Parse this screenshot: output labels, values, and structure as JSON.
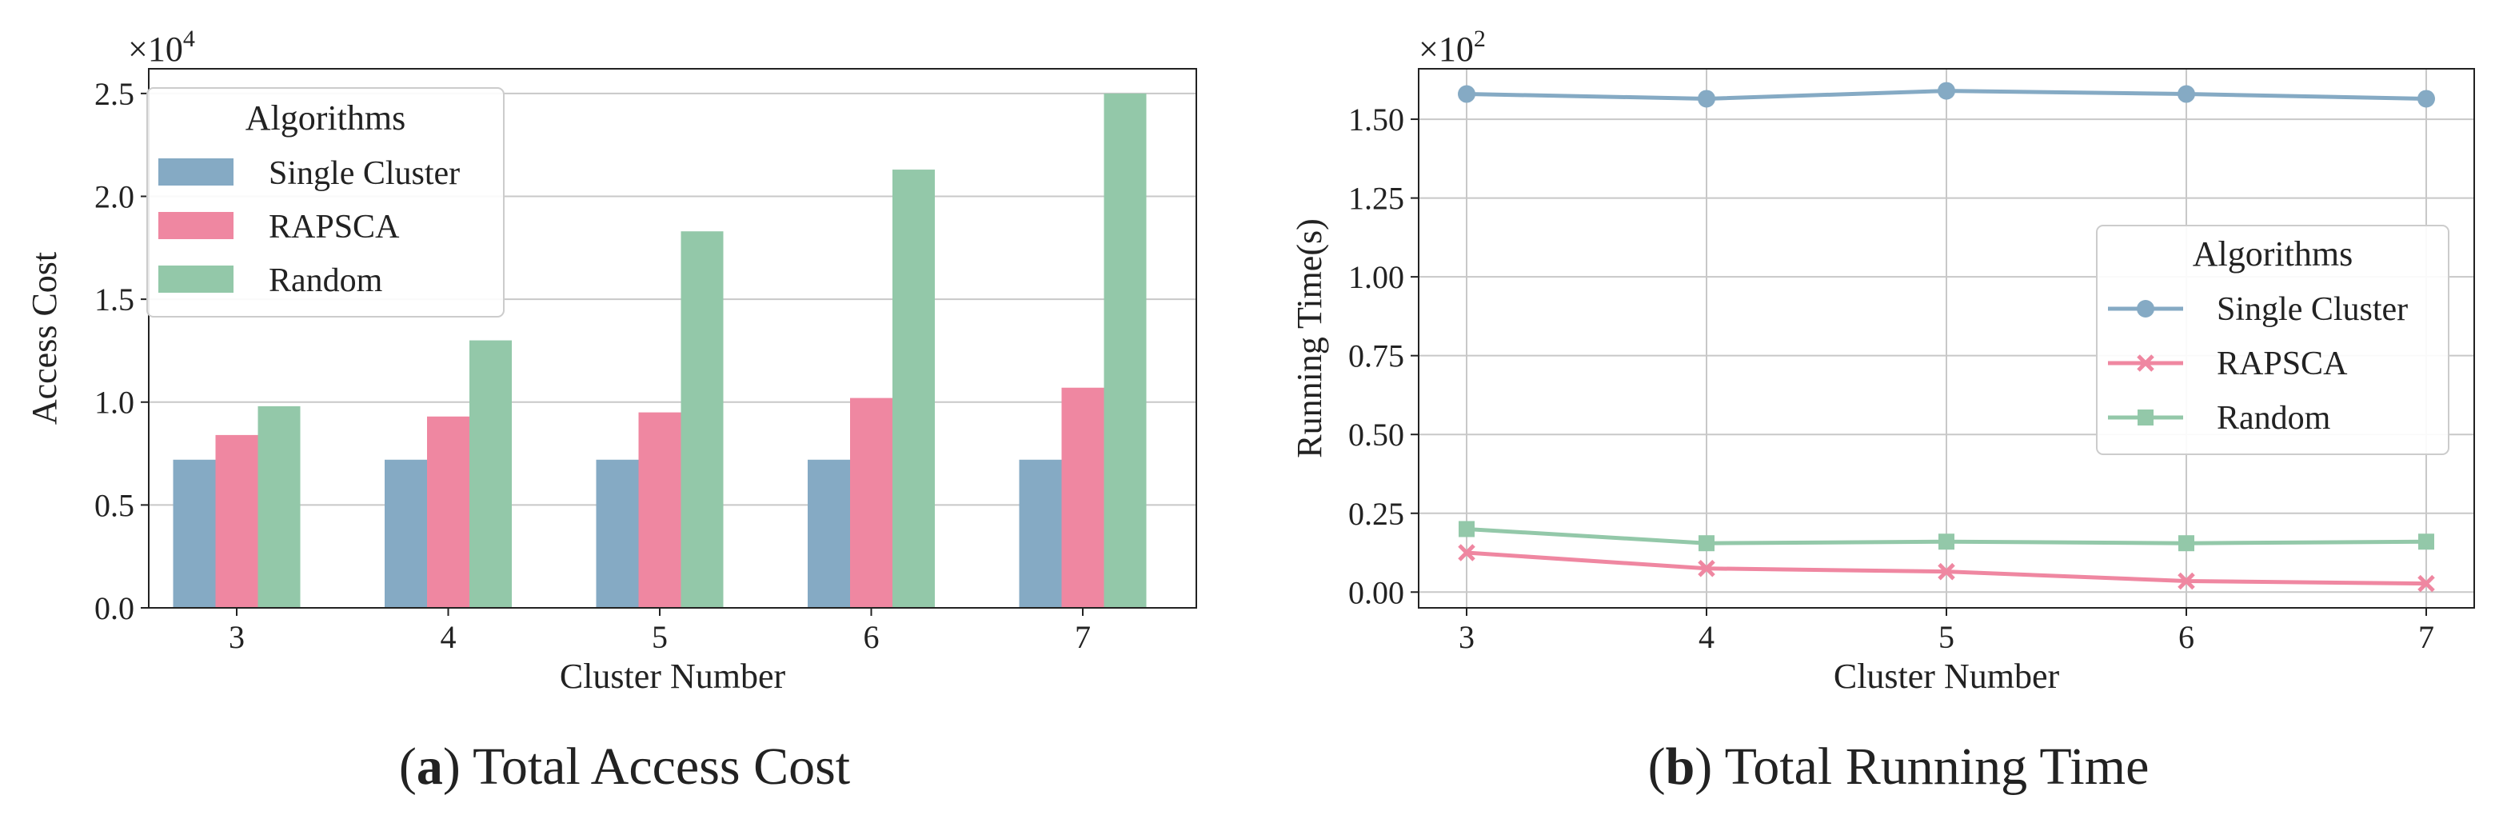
{
  "colors": {
    "single_cluster": "#85AAC4",
    "rapsca": "#EF87A1",
    "random": "#93C8A9"
  },
  "chart_data": [
    {
      "type": "bar",
      "title": "",
      "caption_label": "a",
      "caption_text": "Total Access Cost",
      "xlabel": "Cluster Number",
      "ylabel": "Access Cost",
      "multiplier": "×10",
      "multiplier_exp": "4",
      "categories": [
        "3",
        "4",
        "5",
        "6",
        "7"
      ],
      "ylim": [
        0,
        2.62
      ],
      "yticks": [
        "0.0",
        "0.5",
        "1.0",
        "1.5",
        "2.0",
        "2.5"
      ],
      "grid": true,
      "legend": {
        "title": "Algorithms",
        "position": "top-left"
      },
      "series": [
        {
          "name": "Single Cluster",
          "values": [
            0.72,
            0.72,
            0.72,
            0.72,
            0.72
          ]
        },
        {
          "name": "RAPSCA",
          "values": [
            0.84,
            0.93,
            0.95,
            1.02,
            1.07
          ]
        },
        {
          "name": "Random",
          "values": [
            0.98,
            1.3,
            1.83,
            2.13,
            2.5
          ]
        }
      ]
    },
    {
      "type": "line",
      "title": "",
      "caption_label": "b",
      "caption_text": "Total Running Time",
      "xlabel": "Cluster Number",
      "ylabel": "Running Time(s)",
      "multiplier": "×10",
      "multiplier_exp": "2",
      "x": [
        "3",
        "4",
        "5",
        "6",
        "7"
      ],
      "ylim": [
        -0.05,
        1.66
      ],
      "yticks": [
        "0.00",
        "0.25",
        "0.50",
        "0.75",
        "1.00",
        "1.25",
        "1.50"
      ],
      "grid": true,
      "legend": {
        "title": "Algorithms",
        "position": "center-right"
      },
      "series": [
        {
          "name": "Single Cluster",
          "marker": "circle",
          "values": [
            1.58,
            1.565,
            1.59,
            1.58,
            1.565
          ]
        },
        {
          "name": "RAPSCA",
          "marker": "x",
          "values": [
            0.125,
            0.075,
            0.065,
            0.035,
            0.027
          ]
        },
        {
          "name": "Random",
          "marker": "square",
          "values": [
            0.2,
            0.155,
            0.16,
            0.155,
            0.16
          ]
        }
      ]
    }
  ]
}
